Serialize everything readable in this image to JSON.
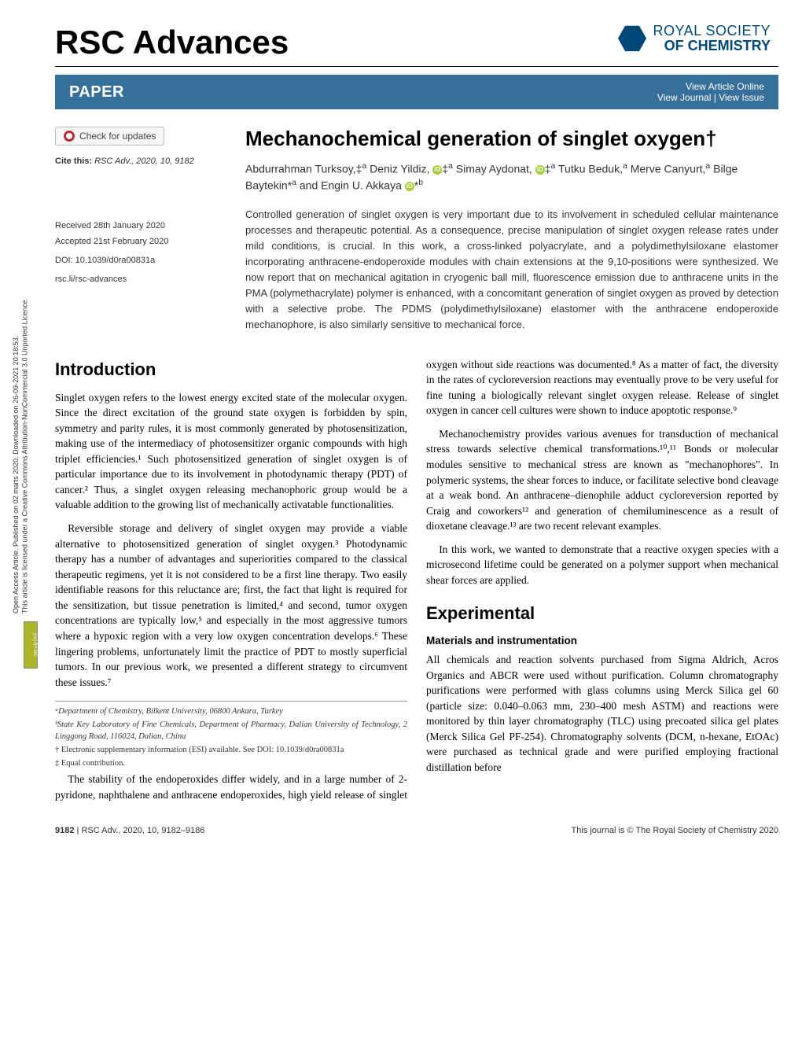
{
  "colors": {
    "bar_bg": "#376f9b",
    "rsc_blue": "#004976",
    "orcid_green": "#a6ce39",
    "cc_green": "#aab52a",
    "check_red": "#b03030",
    "text": "#000000",
    "muted": "#333333"
  },
  "license_sidebar": {
    "line1": "Open Access Article. Published on 02 marts 2020. Downloaded on 26-09-2021 20:18:53.",
    "line2": "This article is licensed under a Creative Commons Attribution-NonCommercial 3.0 Unported Licence.",
    "badge": "(cc) BY-NC"
  },
  "journal_title": "RSC Advances",
  "publisher_logo": {
    "line1": "ROYAL SOCIETY",
    "line2": "OF CHEMISTRY"
  },
  "bar": {
    "label": "PAPER",
    "link1": "View Article Online",
    "link2_a": "View Journal",
    "link2_b": "View Issue"
  },
  "check_updates": "Check for updates",
  "cite": {
    "prefix": "Cite this:",
    "rest": " RSC Adv., 2020, 10, 9182"
  },
  "meta": {
    "received": "Received 28th January 2020",
    "accepted": "Accepted 21st February 2020",
    "doi": "DOI: 10.1039/d0ra00831a",
    "slug": "rsc.li/rsc-advances"
  },
  "title": "Mechanochemical generation of singlet oxygen†",
  "authors_html": "Abdurrahman Turksoy,‡<sup>a</sup> Deniz Yildiz, <span class='orcid'>iD</span>‡<sup>a</sup> Simay Aydonat, <span class='orcid'>iD</span>‡<sup>a</sup> Tutku Beduk,<sup>a</sup> Merve Canyurt,<sup>a</sup> Bilge Baytekin*<sup>a</sup> and Engin U. Akkaya <span class='orcid'>iD</span>*<sup>b</sup>",
  "abstract": "Controlled generation of singlet oxygen is very important due to its involvement in scheduled cellular maintenance processes and therapeutic potential. As a consequence, precise manipulation of singlet oxygen release rates under mild conditions, is crucial. In this work, a cross-linked polyacrylate, and a polydimethylsiloxane elastomer incorporating anthracene-endoperoxide modules with chain extensions at the 9,10-positions were synthesized. We now report that on mechanical agitation in cryogenic ball mill, fluorescence emission due to anthracene units in the PMA (polymethacrylate) polymer is enhanced, with a concomitant generation of singlet oxygen as proved by detection with a selective probe. The PDMS (polydimethylsiloxane) elastomer with the anthracene endoperoxide mechanophore, is also similarly sensitive to mechanical force.",
  "sections": {
    "intro_head": "Introduction",
    "intro_p1": "Singlet oxygen refers to the lowest energy excited state of the molecular oxygen. Since the direct excitation of the ground state oxygen is forbidden by spin, symmetry and parity rules, it is most commonly generated by photosensitization, making use of the intermediacy of photosensitizer organic compounds with high triplet efficiencies.¹ Such photosensitized generation of singlet oxygen is of particular importance due to its involvement in photodynamic therapy (PDT) of cancer.² Thus, a singlet oxygen releasing mechanophoric group would be a valuable addition to the growing list of mechanically activatable functionalities.",
    "intro_p2": "Reversible storage and delivery of singlet oxygen may provide a viable alternative to photosensitized generation of singlet oxygen.³ Photodynamic therapy has a number of advantages and superiorities compared to the classical therapeutic regimens, yet it is not considered to be a first line therapy. Two easily identifiable reasons for this reluctance are; first, the fact that light is required for the sensitization, but tissue penetration is limited,⁴ and second, tumor oxygen concentrations are typically low,⁵ and especially in the most aggressive tumors where a hypoxic region with a very low oxygen concentration develops.⁶ These lingering problems, unfortunately limit the practice of PDT to mostly superficial tumors. In our previous work, we presented a different strategy to circumvent these issues.⁷",
    "intro_p3": "The stability of the endoperoxides differ widely, and in a large number of 2-pyridone, naphthalene and anthracene endoperoxides, high yield release of singlet oxygen without side reactions was documented.⁸ As a matter of fact, the diversity in the rates of cycloreversion reactions may eventually prove to be very useful for fine tuning a biologically relevant singlet oxygen release. Release of singlet oxygen in cancer cell cultures were shown to induce apoptotic response.⁹",
    "intro_p4": "Mechanochemistry provides various avenues for transduction of mechanical stress towards selective chemical transformations.¹⁰,¹¹ Bonds or molecular modules sensitive to mechanical stress are known as \"mechanophores\". In polymeric systems, the shear forces to induce, or facilitate selective bond cleavage at a weak bond. An anthracene–dienophile adduct cycloreversion reported by Craig and coworkers¹² and generation of chemiluminescence as a result of dioxetane cleavage.¹³ are two recent relevant examples.",
    "intro_p5": "In this work, we wanted to demonstrate that a reactive oxygen species with a microsecond lifetime could be generated on a polymer support when mechanical shear forces are applied.",
    "exp_head": "Experimental",
    "exp_sub": "Materials and instrumentation",
    "exp_p1": "All chemicals and reaction solvents purchased from Sigma Aldrich, Acros Organics and ABCR were used without purification. Column chromatography purifications were performed with glass columns using Merck Silica gel 60 (particle size: 0.040–0.063 mm, 230–400 mesh ASTM) and reactions were monitored by thin layer chromatography (TLC) using precoated silica gel plates (Merck Silica Gel PF-254). Chromatography solvents (DCM, n-hexane, EtOAc) were purchased as technical grade and were purified employing fractional distillation before"
  },
  "footnotes": {
    "a": "ᵃDepartment of Chemistry, Bilkent University, 06800 Ankara, Turkey",
    "b": "ᵇState Key Laboratory of Fine Chemicals, Department of Pharmacy, Dalian University of Technology, 2 Linggong Road, 116024, Dalian, China",
    "dagger": "† Electronic supplementary information (ESI) available. See DOI: 10.1039/d0ra00831a",
    "ddagger": "‡ Equal contribution."
  },
  "footer": {
    "left_a": "9182",
    "left_b": " | RSC Adv., 2020, 10, 9182–9186",
    "right": "This journal is © The Royal Society of Chemistry 2020"
  }
}
